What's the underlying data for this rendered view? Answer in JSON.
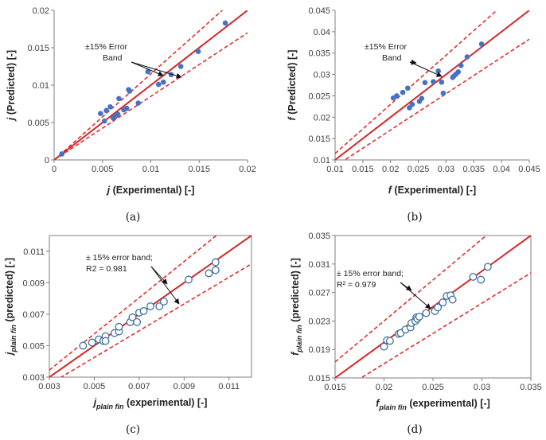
{
  "chart_data": [
    {
      "id": "a",
      "type": "scatter",
      "caption": "(a)",
      "xaxis": {
        "symbol": "j",
        "label": " (Experimental) [-]"
      },
      "yaxis": {
        "symbol": "j",
        "label": " (Predicted) [-]"
      },
      "xlim": [
        0,
        0.02
      ],
      "ylim": [
        0,
        0.02
      ],
      "xticks": [
        0,
        0.005,
        0.01,
        0.015,
        0.02
      ],
      "yticks": [
        0,
        0.005,
        0.01,
        0.015,
        0.02
      ],
      "xticklabels": [
        "0",
        "0.005",
        "0.01",
        "0.015",
        "0.02"
      ],
      "yticklabels": [
        "0",
        "0.005",
        "0.01",
        "0.015",
        "0.02"
      ],
      "marker": "filled",
      "annotation_lines": [
        "±15% Error",
        "Band"
      ],
      "points": [
        [
          0.0008,
          0.0008
        ],
        [
          0.0048,
          0.0062
        ],
        [
          0.0052,
          0.0052
        ],
        [
          0.0054,
          0.0066
        ],
        [
          0.0058,
          0.0071
        ],
        [
          0.0061,
          0.0056
        ],
        [
          0.0063,
          0.0058
        ],
        [
          0.0066,
          0.0061
        ],
        [
          0.0067,
          0.0082
        ],
        [
          0.0072,
          0.0067
        ],
        [
          0.0075,
          0.0069
        ],
        [
          0.0077,
          0.0094
        ],
        [
          0.0078,
          0.0092
        ],
        [
          0.0087,
          0.0076
        ],
        [
          0.0097,
          0.0118
        ],
        [
          0.0108,
          0.0101
        ],
        [
          0.0113,
          0.0104
        ],
        [
          0.0121,
          0.0114
        ],
        [
          0.0131,
          0.0125
        ],
        [
          0.0149,
          0.0145
        ],
        [
          0.0177,
          0.0183
        ]
      ]
    },
    {
      "id": "b",
      "type": "scatter",
      "caption": "(b)",
      "xaxis": {
        "symbol": "f",
        "label": " (Experimental) [-]"
      },
      "yaxis": {
        "symbol": "f",
        "label": " (Predicted) [-]"
      },
      "xlim": [
        0.01,
        0.045
      ],
      "ylim": [
        0.01,
        0.045
      ],
      "xticks": [
        0.01,
        0.015,
        0.02,
        0.025,
        0.03,
        0.035,
        0.04,
        0.045
      ],
      "yticks": [
        0.01,
        0.015,
        0.02,
        0.025,
        0.03,
        0.035,
        0.04,
        0.045
      ],
      "xticklabels": [
        "0.01",
        "0.015",
        "0.02",
        "0.025",
        "0.03",
        "0.035",
        "0.04",
        "0.045"
      ],
      "yticklabels": [
        "0.01",
        "0.015",
        "0.02",
        "0.025",
        "0.03",
        "0.035",
        "0.04",
        "0.045"
      ],
      "marker": "filled",
      "annotation_lines": [
        "±15% Error",
        "Band"
      ],
      "points": [
        [
          0.0205,
          0.0245
        ],
        [
          0.0211,
          0.025
        ],
        [
          0.0222,
          0.0258
        ],
        [
          0.0231,
          0.0268
        ],
        [
          0.0234,
          0.0222
        ],
        [
          0.0239,
          0.023
        ],
        [
          0.0252,
          0.0237
        ],
        [
          0.0256,
          0.0244
        ],
        [
          0.0262,
          0.0281
        ],
        [
          0.0277,
          0.0283
        ],
        [
          0.0286,
          0.0308
        ],
        [
          0.0292,
          0.0282
        ],
        [
          0.0295,
          0.0256
        ],
        [
          0.0312,
          0.0293
        ],
        [
          0.0314,
          0.0296
        ],
        [
          0.0318,
          0.0301
        ],
        [
          0.0322,
          0.0306
        ],
        [
          0.0327,
          0.0321
        ],
        [
          0.0338,
          0.0341
        ],
        [
          0.0364,
          0.0371
        ]
      ]
    },
    {
      "id": "c",
      "type": "scatter",
      "caption": "(c)",
      "xaxis": {
        "symbol": "j",
        "subscript": "plain fin",
        "label": " (experimental) [-]"
      },
      "yaxis": {
        "symbol": "j",
        "subscript": "plain fin",
        "label": " (predicted) [-]"
      },
      "xlim": [
        0.003,
        0.012
      ],
      "ylim": [
        0.003,
        0.012
      ],
      "xticks": [
        0.003,
        0.005,
        0.007,
        0.009,
        0.011
      ],
      "yticks": [
        0.003,
        0.005,
        0.007,
        0.009,
        0.011
      ],
      "xticklabels": [
        "0.003",
        "0.005",
        "0.007",
        "0.009",
        "0.011"
      ],
      "yticklabels": [
        "0.003",
        "0.005",
        "0.007",
        "0.009",
        "0.011"
      ],
      "marker": "open",
      "annotation_lines": [
        "± 15% error band;",
        "R2 = 0.981"
      ],
      "points": [
        [
          0.0045,
          0.005
        ],
        [
          0.0049,
          0.0052
        ],
        [
          0.0052,
          0.0054
        ],
        [
          0.0054,
          0.0053
        ],
        [
          0.0055,
          0.0056
        ],
        [
          0.0055,
          0.0053
        ],
        [
          0.0059,
          0.0058
        ],
        [
          0.0061,
          0.0059
        ],
        [
          0.0061,
          0.0062
        ],
        [
          0.0066,
          0.0065
        ],
        [
          0.0067,
          0.0068
        ],
        [
          0.0069,
          0.0065
        ],
        [
          0.007,
          0.0071
        ],
        [
          0.0072,
          0.0072
        ],
        [
          0.0075,
          0.0075
        ],
        [
          0.0079,
          0.0075
        ],
        [
          0.0081,
          0.0078
        ],
        [
          0.0092,
          0.0092
        ],
        [
          0.0101,
          0.0096
        ],
        [
          0.0104,
          0.0098
        ],
        [
          0.0104,
          0.0103
        ]
      ]
    },
    {
      "id": "d",
      "type": "scatter",
      "caption": "(d)",
      "xaxis": {
        "symbol": "f",
        "subscript": "plain fin",
        "label": " (experimental) [-]"
      },
      "yaxis": {
        "symbol": "f",
        "subscript": "plain fin",
        "label": " (predicted) [-]"
      },
      "xlim": [
        0.015,
        0.035
      ],
      "ylim": [
        0.015,
        0.035
      ],
      "xticks": [
        0.015,
        0.02,
        0.025,
        0.03,
        0.035
      ],
      "yticks": [
        0.015,
        0.019,
        0.023,
        0.027,
        0.031,
        0.035
      ],
      "xticklabels": [
        "0.015",
        "0.02",
        "0.025",
        "0.03",
        "0.035"
      ],
      "yticklabels": [
        "0.015",
        "0.019",
        "0.023",
        "0.027",
        "0.031",
        "0.035"
      ],
      "marker": "open",
      "annotation_lines": [
        "± 15% error band;",
        "R² = 0.979"
      ],
      "points": [
        [
          0.02,
          0.0194
        ],
        [
          0.0203,
          0.0203
        ],
        [
          0.0206,
          0.0202
        ],
        [
          0.0215,
          0.0212
        ],
        [
          0.0217,
          0.0213
        ],
        [
          0.0222,
          0.0218
        ],
        [
          0.0227,
          0.0221
        ],
        [
          0.0228,
          0.0227
        ],
        [
          0.0232,
          0.023
        ],
        [
          0.0233,
          0.0235
        ],
        [
          0.0234,
          0.0233
        ],
        [
          0.0236,
          0.0236
        ],
        [
          0.0243,
          0.0241
        ],
        [
          0.0252,
          0.0244
        ],
        [
          0.0255,
          0.0249
        ],
        [
          0.026,
          0.0256
        ],
        [
          0.0264,
          0.0265
        ],
        [
          0.0268,
          0.0266
        ],
        [
          0.027,
          0.026
        ],
        [
          0.0291,
          0.0292
        ],
        [
          0.0299,
          0.0288
        ],
        [
          0.0306,
          0.0306
        ]
      ]
    }
  ],
  "colors": {
    "reference_line": "#d62728",
    "error_band": "#e03030",
    "filled_marker": "#4472c4",
    "open_marker_stroke": "#41719c",
    "axis": "#7f7f7f"
  }
}
